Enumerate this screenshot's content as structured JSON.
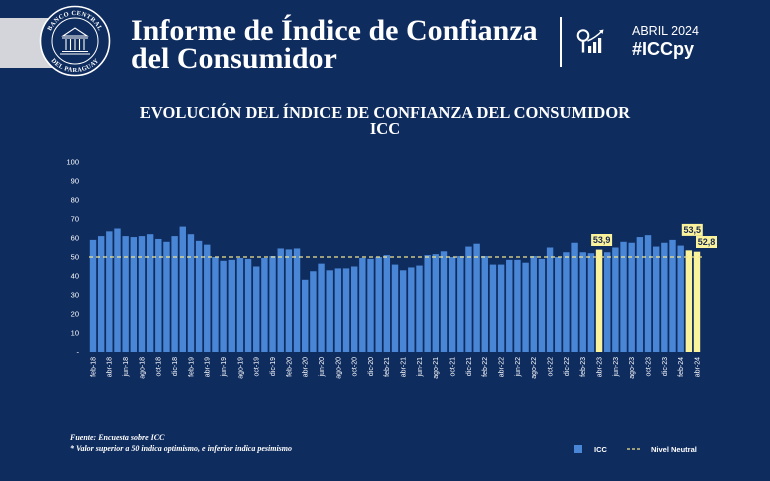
{
  "header": {
    "seal_top": "BANCO CENTRAL",
    "seal_bottom": "DEL PARAGUAY",
    "title_line1": "Informe de Índice de Confianza",
    "title_line2": "del Consumidor",
    "period": "ABRIL 2024",
    "hashtag": "#ICCpy",
    "icon": "search-chart-icon"
  },
  "chart_data": {
    "type": "bar",
    "title": "EVOLUCIÓN DEL ÍNDICE DE CONFIANZA DEL CONSUMIDOR",
    "subtitle": "ICC",
    "ylim": [
      0,
      100
    ],
    "y_tick_labels": [
      "100",
      "90",
      "80",
      "70",
      "60",
      "50",
      "40",
      "30",
      "20",
      "10",
      "-"
    ],
    "x_tick_every": 2,
    "x_tick_labels": [
      "feb-18",
      "abr-18",
      "jun-18",
      "ago-18",
      "oct-18",
      "dic-18",
      "feb-19",
      "abr-19",
      "jun-19",
      "ago-19",
      "oct-19",
      "dic-19",
      "feb-20",
      "abr-20",
      "jun-20",
      "ago-20",
      "oct-20",
      "dic-20",
      "feb-21",
      "abr-21",
      "jun-21",
      "ago-21",
      "oct-21",
      "dic-21",
      "feb-22",
      "abr-22",
      "jun-22",
      "ago-22",
      "oct-22",
      "dic-22",
      "feb-23",
      "abr-23",
      "jun-23",
      "ago-23",
      "oct-23",
      "dic-23",
      "feb-24",
      "abr-24"
    ],
    "values": [
      59,
      61,
      63.5,
      65,
      61,
      60.5,
      61,
      62,
      59.5,
      58,
      61,
      66,
      62,
      58.5,
      56.5,
      50,
      48,
      48.5,
      49.5,
      49,
      45,
      49.5,
      50.5,
      54.5,
      54,
      54.5,
      38,
      42.5,
      46.5,
      43,
      44,
      44,
      45,
      49.5,
      49,
      50,
      51,
      46,
      43,
      44.5,
      45.5,
      51,
      51.5,
      53,
      50,
      50.5,
      55.5,
      57,
      50.5,
      46,
      46,
      48.5,
      48.5,
      47,
      50.5,
      49,
      55,
      50,
      52.5,
      57.5,
      52.5,
      52,
      53.9,
      52.5,
      55,
      58,
      57.5,
      60.5,
      61.5,
      55.5,
      57.5,
      59,
      56,
      53.5,
      52.8
    ],
    "neutral_level": 50,
    "highlight_indices": [
      62,
      73,
      74
    ],
    "data_labels": [
      {
        "index": 62,
        "text": "53,9"
      },
      {
        "index": 73,
        "text": "53,5"
      },
      {
        "index": 74,
        "text": "52,8"
      }
    ],
    "legend": {
      "bar_label": "ICC",
      "line_label": "Nivel Neutral"
    },
    "grid": false
  },
  "footer": {
    "source": "Fuente: Encuesta sobre ICC",
    "note": "* Valor superior a 50 indica optimismo, e inferior indica pesimismo"
  },
  "colors": {
    "background": "#0f2c5f",
    "bar": "#4a86d6",
    "highlight": "#fbf39c",
    "neutral": "#f2e48c",
    "band": "#d3d5da"
  }
}
